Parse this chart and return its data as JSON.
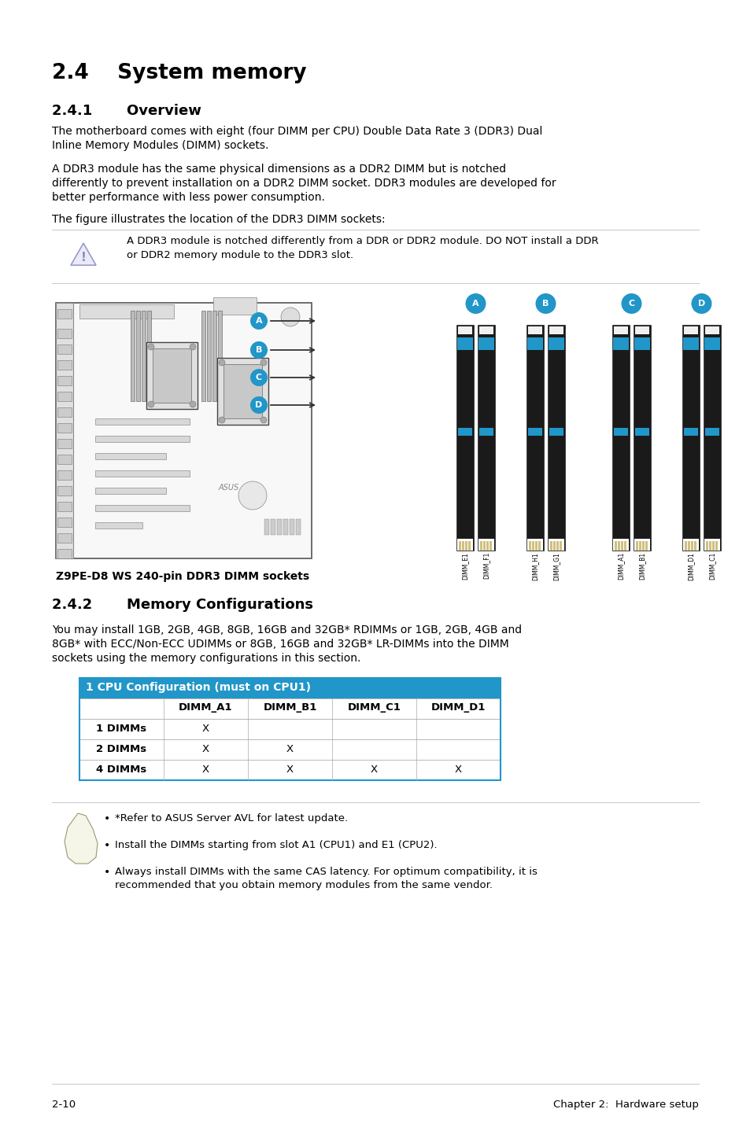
{
  "title_section": "2.4    System memory",
  "subtitle_overview": "2.4.1       Overview",
  "subtitle_memory_config": "2.4.2       Memory Configurations",
  "body_text_1a": "The motherboard comes with eight (four DIMM per CPU) Double Data Rate 3 (DDR3) Dual",
  "body_text_1b": "Inline Memory Modules (DIMM) sockets.",
  "body_text_2a": "A DDR3 module has the same physical dimensions as a DDR2 DIMM but is notched",
  "body_text_2b": "differently to prevent installation on a DDR2 DIMM socket. DDR3 modules are developed for",
  "body_text_2c": "better performance with less power consumption.",
  "body_text_3": "The figure illustrates the location of the DDR3 DIMM sockets:",
  "warning_text_a": "A DDR3 module is notched differently from a DDR or DDR2 module. DO NOT install a DDR",
  "warning_text_b": "or DDR2 memory module to the DDR3 slot.",
  "figure_caption": "Z9PE-D8 WS 240-pin DDR3 DIMM sockets",
  "memory_config_body_a": "You may install 1GB, 2GB, 4GB, 8GB, 16GB and 32GB* RDIMMs or 1GB, 2GB, 4GB and",
  "memory_config_body_b": "8GB* with ECC/Non-ECC UDIMMs or 8GB, 16GB and 32GB* LR-DIMMs into the DIMM",
  "memory_config_body_c": "sockets using the memory configurations in this section.",
  "table_header": "1 CPU Configuration (must on CPU1)",
  "table_cols": [
    "",
    "DIMM_A1",
    "DIMM_B1",
    "DIMM_C1",
    "DIMM_D1"
  ],
  "table_rows": [
    [
      "1 DIMMs",
      "X",
      "",
      "",
      ""
    ],
    [
      "2 DIMMs",
      "X",
      "X",
      "",
      ""
    ],
    [
      "4 DIMMs",
      "X",
      "X",
      "X",
      "X"
    ]
  ],
  "note_1": "*Refer to ASUS Server AVL for latest update.",
  "note_2": "Install the DIMMs starting from slot A1 (CPU1) and E1 (CPU2).",
  "note_3a": "Always install DIMMs with the same CAS latency. For optimum compatibility, it is",
  "note_3b": "recommended that you obtain memory modules from the same vendor.",
  "footer_left": "2-10",
  "footer_right": "Chapter 2:  Hardware setup",
  "bg_color": "#ffffff",
  "text_color": "#000000",
  "blue_color": "#2196c8",
  "table_header_bg": "#2196c8",
  "table_header_text": "#ffffff",
  "gray_line": "#cccccc",
  "dimm_groups": [
    {
      "label": "A",
      "sticks": [
        "DIMM_E1",
        "DIMM_F1"
      ]
    },
    {
      "label": "B",
      "sticks": [
        "DIMM_H1",
        "DIMM_G1"
      ]
    },
    {
      "label": "C",
      "sticks": [
        "DIMM_A1",
        "DIMM_B1"
      ]
    },
    {
      "label": "D",
      "sticks": [
        "DIMM_D1",
        "DIMM_C1"
      ]
    }
  ],
  "arrow_labels": [
    "A",
    "B",
    "C",
    "D"
  ]
}
